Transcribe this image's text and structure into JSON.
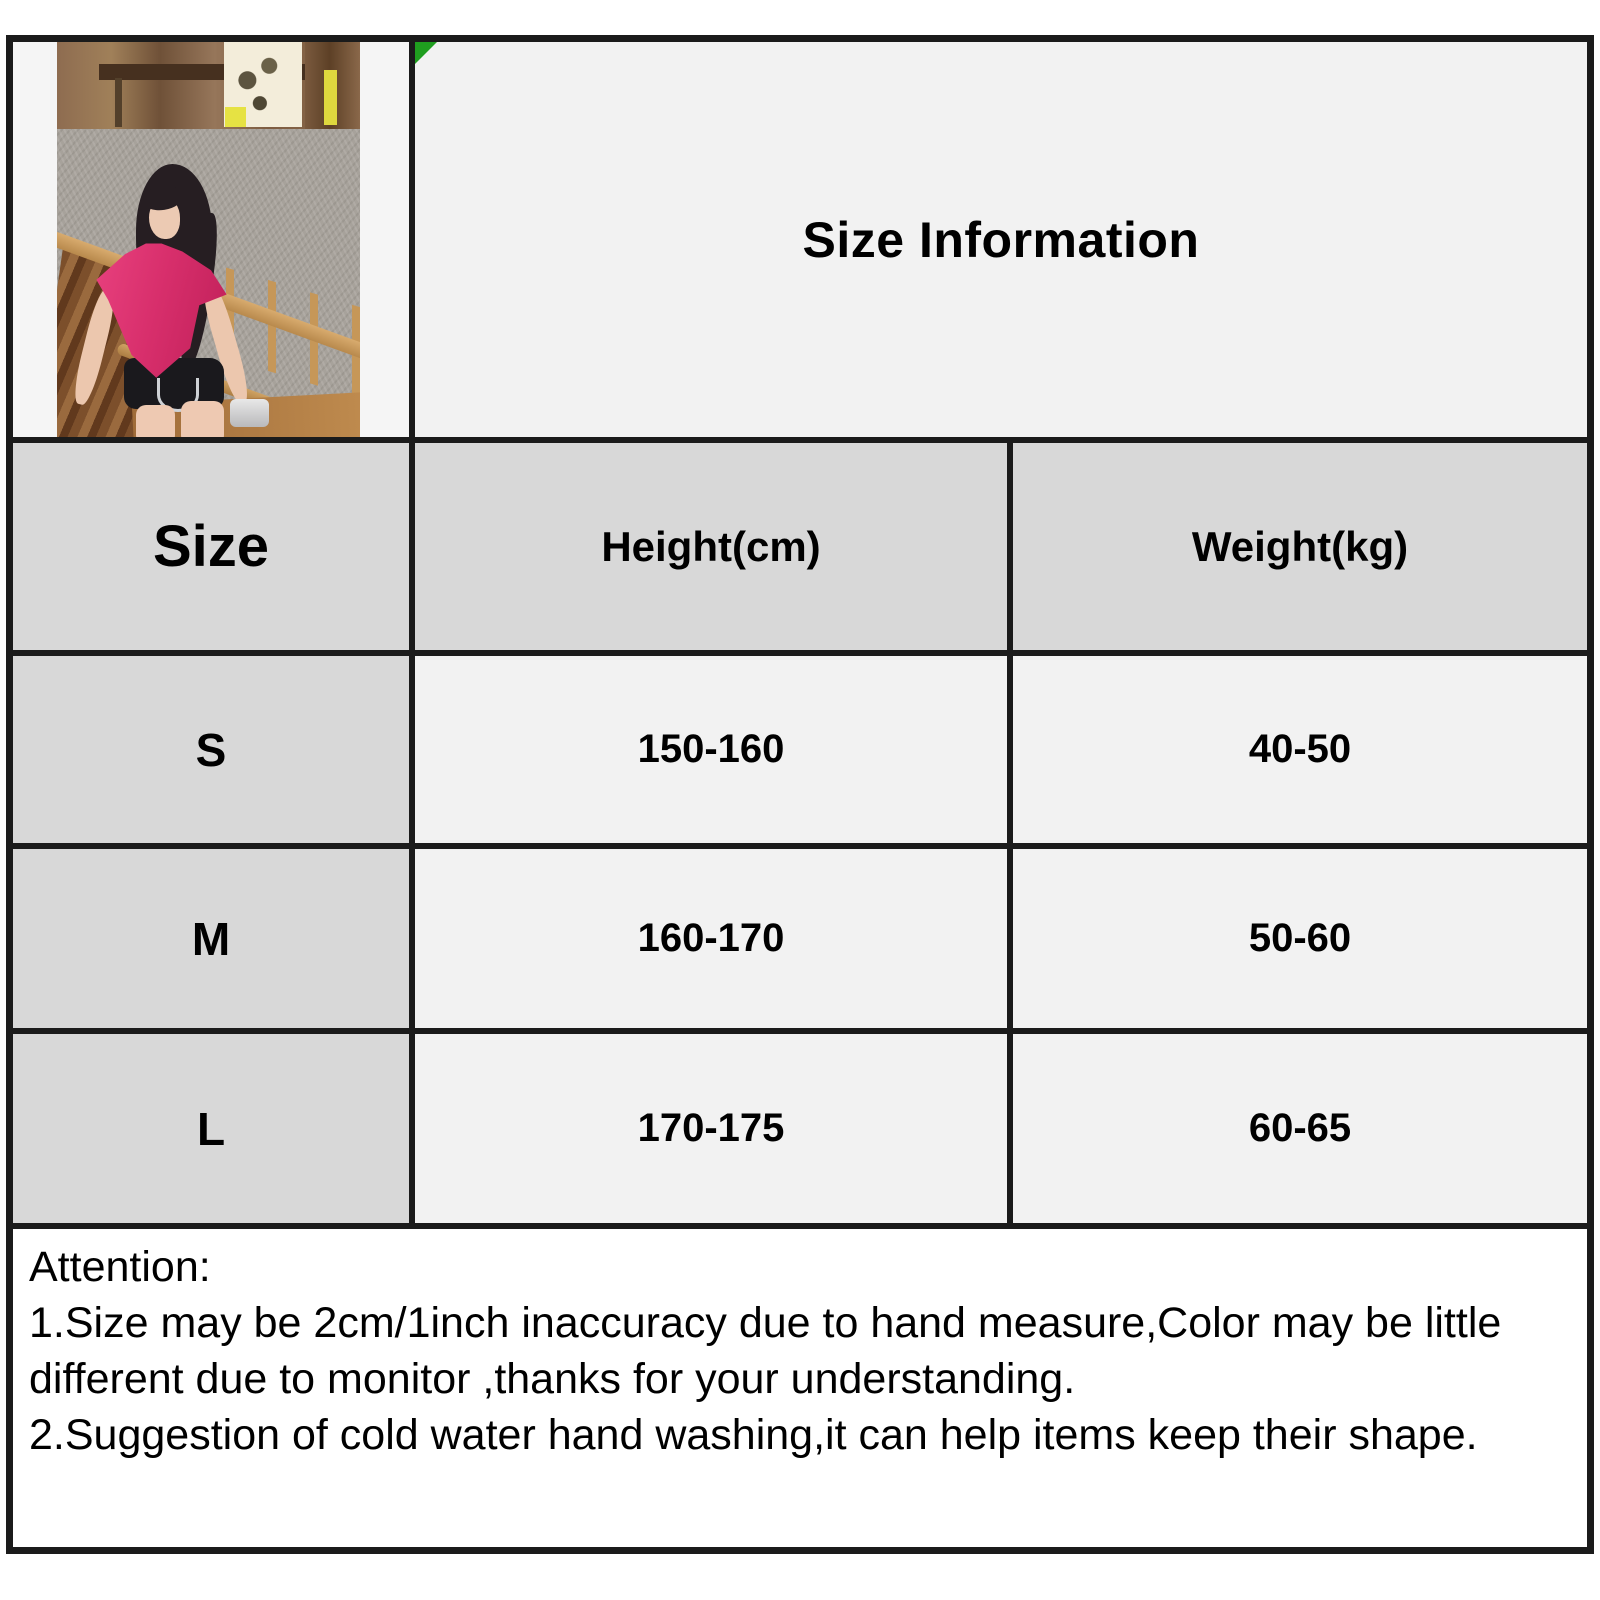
{
  "page": {
    "title": "Size Information"
  },
  "size_table": {
    "headers": [
      "Size",
      "Height(cm)",
      "Weight(kg)"
    ],
    "rows": [
      [
        "S",
        "150-160",
        "40-50"
      ],
      [
        "M",
        "160-170",
        "50-60"
      ],
      [
        "L",
        "170-175",
        "60-65"
      ]
    ]
  },
  "attention": {
    "lines": [
      "Attention:",
      "1.Size may be 2cm/1inch inaccuracy due to hand measure,Color may be little",
      "different due to monitor ,thanks for your understanding.",
      "2.Suggestion of cold water hand washing,it can help items keep their shape."
    ]
  },
  "icons": {
    "corner_marker": "green-triangle"
  },
  "colors": {
    "border_black": "#1b1b1b",
    "header_gray": "#d8d8d8",
    "cell_light": "#f2f2f2",
    "marker_green": "#1f9e1f",
    "product_top_pink": "#d82f6c"
  }
}
